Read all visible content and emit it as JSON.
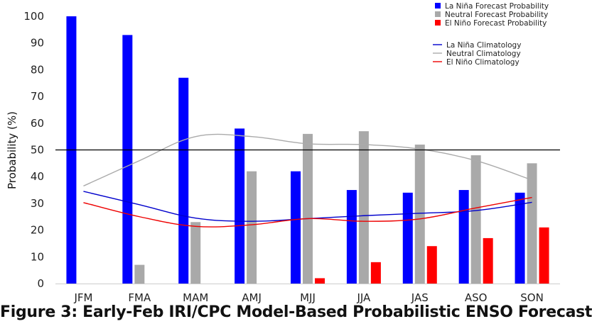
{
  "caption": "Figure 3: Early-Feb IRI/CPC Model-Based Probabilistic ENSO Forecast",
  "chart_data": {
    "type": "bar",
    "title": "",
    "xlabel": "",
    "ylabel": "Probability (%)",
    "ylim": [
      0,
      100
    ],
    "yticks": [
      0,
      10,
      20,
      30,
      40,
      50,
      60,
      70,
      80,
      90,
      100
    ],
    "reference_line": 50,
    "categories": [
      "JFM",
      "FMA",
      "MAM",
      "AMJ",
      "MJJ",
      "JJA",
      "JAS",
      "ASO",
      "SON"
    ],
    "series": [
      {
        "name": "La Niña Forecast Probability",
        "color": "#0000ff",
        "values": [
          100,
          93,
          77,
          58,
          42,
          35,
          34,
          35,
          34
        ]
      },
      {
        "name": "Neutral Forecast Probability",
        "color": "#a9a9a9",
        "values": [
          0,
          7,
          23,
          42,
          56,
          57,
          52,
          48,
          45
        ]
      },
      {
        "name": "El Niño Forecast Probability",
        "color": "#ff0000",
        "values": [
          0,
          0,
          0,
          0,
          2,
          8,
          14,
          17,
          21
        ]
      }
    ],
    "lines": [
      {
        "name": "La Niña Climatology",
        "color": "#0000cc",
        "values": [
          34.5,
          29.5,
          24.5,
          23.3,
          24.3,
          25.4,
          26.3,
          27.3,
          30.4
        ]
      },
      {
        "name": "Neutral Climatology",
        "color": "#aaaaaa",
        "values": [
          36.5,
          46.0,
          55.0,
          55.0,
          52.3,
          52.0,
          50.3,
          46.0,
          38.7
        ]
      },
      {
        "name": "El Niño Climatology",
        "color": "#ee0000",
        "values": [
          30.3,
          25.0,
          21.4,
          22.0,
          24.3,
          23.3,
          24.2,
          28.3,
          32.2
        ]
      }
    ],
    "legend_position": "top-right"
  }
}
